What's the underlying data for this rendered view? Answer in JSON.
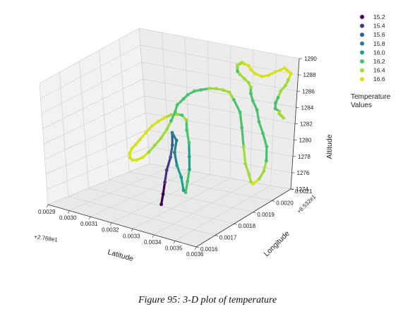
{
  "chart_data": {
    "type": "scatter",
    "projection": "3d",
    "xlabel": "Latitude",
    "ylabel": "Longitude",
    "zlabel": "Altitude",
    "x_offset_label": "+2.768e1",
    "y_offset_label": "+8.532e1",
    "x_ticks": [
      "0.0029",
      "0.0030",
      "0.0031",
      "0.0032",
      "0.0033",
      "0.0034",
      "0.0035",
      "0.0036"
    ],
    "y_ticks": [
      "0.0016",
      "0.0017",
      "0.0018",
      "0.0019",
      "0.0020",
      "0.0021"
    ],
    "z_ticks": [
      "1274",
      "1276",
      "1278",
      "1280",
      "1282",
      "1284",
      "1286",
      "1288",
      "1290"
    ],
    "xlim": [
      0.0029,
      0.0036
    ],
    "ylim": [
      0.0016,
      0.0021
    ],
    "zlim": [
      1274,
      1290
    ],
    "grid": true,
    "legend_title": [
      "Temperature",
      "Values"
    ],
    "legend_placement": "right",
    "legend": [
      {
        "label": "15.2",
        "color": "#440154"
      },
      {
        "label": "15.4",
        "color": "#46327e"
      },
      {
        "label": "15.6",
        "color": "#365c8d"
      },
      {
        "label": "15.8",
        "color": "#277f8e"
      },
      {
        "label": "16.0",
        "color": "#1fa187"
      },
      {
        "label": "16.2",
        "color": "#4ac16d"
      },
      {
        "label": "16.4",
        "color": "#a0da39"
      },
      {
        "label": "16.6",
        "color": "#d4e21a"
      }
    ],
    "series": [
      {
        "x": [
          0.00325,
          0.00326,
          0.00327,
          0.00328,
          0.00329,
          0.0033,
          0.0033,
          0.00331,
          0.0033,
          0.00331,
          0.00332,
          0.00333,
          0.00334,
          0.00334,
          0.00335,
          0.00335,
          0.00334,
          0.00333,
          0.00332,
          0.0033,
          0.00328,
          0.00325,
          0.00322,
          0.00319,
          0.00316,
          0.00313,
          0.0031,
          0.00308,
          0.00306,
          0.00305,
          0.00305,
          0.00306,
          0.00308,
          0.00311,
          0.00314,
          0.00317,
          0.0032,
          0.00322,
          0.00324,
          0.00325,
          0.00326,
          0.00328,
          0.0033,
          0.00332,
          0.00335,
          0.00338,
          0.00341,
          0.00344,
          0.00346,
          0.00348,
          0.0035,
          0.00351,
          0.00352,
          0.00353,
          0.00354,
          0.00355,
          0.00356,
          0.00358,
          0.0036,
          0.00361,
          0.0036,
          0.00358,
          0.00356,
          0.00354,
          0.00352,
          0.00351,
          0.0035,
          0.00349,
          0.00347,
          0.00345,
          0.00344,
          0.00343,
          0.00343,
          0.00344,
          0.00345,
          0.00346,
          0.00347,
          0.00348,
          0.0035,
          0.00353,
          0.00356,
          0.00358,
          0.0036,
          0.00361,
          0.00362,
          0.00363,
          0.00362,
          0.0036,
          0.00358,
          0.00357,
          0.00356,
          0.00356,
          0.00357,
          0.00357,
          0.00358,
          0.00359
        ],
        "y": [
          0.0018,
          0.0018,
          0.0018,
          0.0018,
          0.00181,
          0.00181,
          0.00181,
          0.00182,
          0.00182,
          0.00182,
          0.00183,
          0.00183,
          0.00183,
          0.00184,
          0.00184,
          0.00184,
          0.00185,
          0.00185,
          0.00186,
          0.00186,
          0.00186,
          0.00186,
          0.00186,
          0.00186,
          0.00186,
          0.00186,
          0.00186,
          0.00186,
          0.00186,
          0.00186,
          0.00186,
          0.00186,
          0.00186,
          0.00186,
          0.00186,
          0.00186,
          0.00186,
          0.00187,
          0.00187,
          0.00188,
          0.00188,
          0.00189,
          0.00189,
          0.0019,
          0.0019,
          0.00191,
          0.00191,
          0.00191,
          0.00192,
          0.00192,
          0.00193,
          0.00193,
          0.00193,
          0.00193,
          0.00194,
          0.00194,
          0.00194,
          0.00195,
          0.00195,
          0.00195,
          0.00196,
          0.00196,
          0.00196,
          0.00197,
          0.00197,
          0.00197,
          0.00198,
          0.00198,
          0.00198,
          0.00198,
          0.00198,
          0.00199,
          0.00199,
          0.00199,
          0.00199,
          0.00199,
          0.002,
          0.002,
          0.002,
          0.002,
          0.002,
          0.00201,
          0.00201,
          0.00202,
          0.00202,
          0.00203,
          0.00203,
          0.00204,
          0.00204,
          0.00204,
          0.00204,
          0.00204,
          0.00205,
          0.00205,
          0.00205,
          0.00205
        ],
        "z": [
          1274.2,
          1275.5,
          1277.0,
          1278.5,
          1280.0,
          1281.5,
          1283.0,
          1282.0,
          1280.5,
          1279.0,
          1277.5,
          1276.0,
          1275.8,
          1277.0,
          1278.5,
          1280.0,
          1281.5,
          1283.0,
          1284.0,
          1284.5,
          1284.5,
          1284.3,
          1283.8,
          1283.2,
          1282.5,
          1281.5,
          1280.5,
          1279.8,
          1279.2,
          1278.6,
          1278.0,
          1277.8,
          1277.9,
          1278.4,
          1279.2,
          1280.2,
          1281.2,
          1282.3,
          1283.4,
          1284.4,
          1285.3,
          1286.0,
          1286.6,
          1287.0,
          1287.3,
          1287.5,
          1287.6,
          1287.6,
          1287.3,
          1286.5,
          1285.0,
          1283.2,
          1281.0,
          1279.0,
          1277.6,
          1276.8,
          1276.6,
          1277.2,
          1278.2,
          1279.5,
          1281.0,
          1282.5,
          1283.8,
          1285.0,
          1286.0,
          1286.8,
          1287.4,
          1287.9,
          1288.3,
          1288.7,
          1289.0,
          1289.3,
          1289.6,
          1289.8,
          1290.0,
          1289.9,
          1289.6,
          1289.2,
          1288.8,
          1288.6,
          1288.9,
          1289.3,
          1289.6,
          1289.8,
          1289.6,
          1289.1,
          1288.3,
          1287.4,
          1286.6,
          1285.8,
          1285.1,
          1284.4,
          1284.0,
          1283.7,
          1283.5,
          1283.3
        ],
        "temperature": [
          15.2,
          15.2,
          15.4,
          15.4,
          15.6,
          15.6,
          15.8,
          15.8,
          15.8,
          16.0,
          16.0,
          16.0,
          16.2,
          16.2,
          16.0,
          16.0,
          16.2,
          16.2,
          16.4,
          16.2,
          16.4,
          16.4,
          16.6,
          16.6,
          16.6,
          16.6,
          16.6,
          16.6,
          16.6,
          16.6,
          16.6,
          16.6,
          16.6,
          16.6,
          16.4,
          16.4,
          16.4,
          16.4,
          16.2,
          16.2,
          16.2,
          16.2,
          16.2,
          16.2,
          16.2,
          16.4,
          16.4,
          16.4,
          16.4,
          16.2,
          16.2,
          16.2,
          16.4,
          16.4,
          16.4,
          16.4,
          16.6,
          16.4,
          16.4,
          16.2,
          16.2,
          16.2,
          16.2,
          16.2,
          16.2,
          16.2,
          16.4,
          16.4,
          16.4,
          16.4,
          16.2,
          16.4,
          16.4,
          16.4,
          16.4,
          16.6,
          16.6,
          16.6,
          16.6,
          16.6,
          16.6,
          16.6,
          16.6,
          16.6,
          16.6,
          16.6,
          16.4,
          16.4,
          16.4,
          16.2,
          16.2,
          16.2,
          16.4,
          16.4,
          16.4,
          16.4
        ]
      }
    ]
  },
  "caption": "Figure 95: 3-D plot of temperature"
}
